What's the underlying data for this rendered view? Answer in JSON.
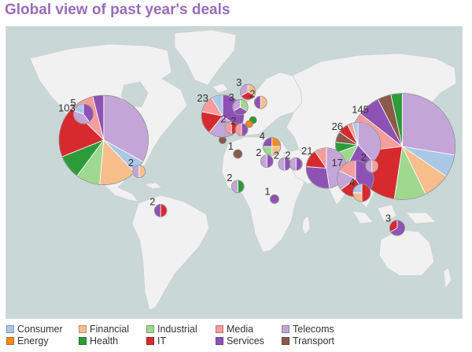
{
  "title": "Global view of past year's deals",
  "colors": {
    "ocean": "#c9d7d6",
    "land": "#f1f1f1",
    "border": "#cfcfcf"
  },
  "categories": [
    {
      "name": "Consumer",
      "color": "#aac8e6"
    },
    {
      "name": "Energy",
      "color": "#f08c23"
    },
    {
      "name": "Financial",
      "color": "#f7be8c"
    },
    {
      "name": "Health",
      "color": "#2e9b3a"
    },
    {
      "name": "Industrial",
      "color": "#9ed98f"
    },
    {
      "name": "IT",
      "color": "#d62a2f"
    },
    {
      "name": "Media",
      "color": "#f59c9c"
    },
    {
      "name": "Services",
      "color": "#8e52b5"
    },
    {
      "name": "Telecoms",
      "color": "#c4a5d8"
    },
    {
      "name": "Transport",
      "color": "#8c5a4a"
    }
  ],
  "chart_data": {
    "type": "map-pie",
    "bubbles": [
      {
        "label": "103",
        "count": 103,
        "lat": 40,
        "lon": -98,
        "segments": {
          "Telecoms": 34,
          "Consumer": 5,
          "Financial": 14,
          "Industrial": 9,
          "Health": 9,
          "IT": 19,
          "Media": 9,
          "Services": 4
        }
      },
      {
        "label": "5",
        "count": 5,
        "lat": 54,
        "lon": -114,
        "segments": {
          "Services": 2,
          "Telecoms": 2,
          "Consumer": 1
        }
      },
      {
        "label": "2",
        "count": 2,
        "lat": 18.5,
        "lon": -70,
        "segments": {
          "Financial": 1,
          "Telecoms": 1
        }
      },
      {
        "label": "2",
        "count": 2,
        "lat": -12,
        "lon": -53,
        "segments": {
          "IT": 1,
          "Services": 1
        }
      },
      {
        "label": "23",
        "count": 23,
        "lat": 53,
        "lon": -4,
        "segments": {
          "Services": 8,
          "Telecoms": 6,
          "IT": 4,
          "Media": 3,
          "Consumer": 2
        }
      },
      {
        "label": "3",
        "count": 3,
        "lat": 57,
        "lon": 10,
        "segments": {
          "Industrial": 1,
          "Services": 1,
          "Telecoms": 1
        }
      },
      {
        "label": "2",
        "count": 2,
        "lat": 47,
        "lon": 3,
        "segments": {
          "IT": 1,
          "Media": 1
        }
      },
      {
        "label": "2",
        "count": 2,
        "lat": 46,
        "lon": 11,
        "segments": {
          "Services": 1,
          "Media": 1
        }
      },
      {
        "label": "3",
        "count": 3,
        "lat": 63,
        "lon": 16,
        "segments": {
          "Financial": 1,
          "IT": 1,
          "Telecoms": 1
        }
      },
      {
        "label": "2",
        "count": 2,
        "lat": 59,
        "lon": 26,
        "segments": {
          "Financial": 1,
          "Services": 1
        }
      },
      {
        "label": "1",
        "count": 1,
        "lat": 31,
        "lon": 8,
        "segments": {
          "Transport": 1
        }
      },
      {
        "label": "4",
        "count": 4,
        "lat": 36,
        "lon": 35,
        "segments": {
          "Energy": 1,
          "Financial": 1,
          "Industrial": 1,
          "Services": 1
        }
      },
      {
        "label": "2",
        "count": 2,
        "lat": 26,
        "lon": 31,
        "segments": {
          "Services": 1,
          "Telecoms": 1
        }
      },
      {
        "label": "2",
        "count": 2,
        "lat": 24,
        "lon": 45,
        "segments": {
          "Services": 1,
          "Telecoms": 1
        }
      },
      {
        "label": "2",
        "count": 2,
        "lat": 24,
        "lon": 54,
        "segments": {
          "Services": 1,
          "Telecoms": 1
        }
      },
      {
        "label": "2",
        "count": 2,
        "lat": 7,
        "lon": 8,
        "segments": {
          "Health": 1,
          "Telecoms": 1
        }
      },
      {
        "label": "1",
        "count": 1,
        "lat": -3,
        "lon": 37,
        "segments": {
          "Services": 1
        }
      },
      {
        "label": "21",
        "count": 21,
        "lat": 21,
        "lon": 78,
        "segments": {
          "Telecoms": 10,
          "Services": 6,
          "IT": 3,
          "Media": 2
        }
      },
      {
        "label": "26",
        "count": 26,
        "lat": 37,
        "lon": 103,
        "segments": {
          "Telecoms": 10,
          "Services": 5,
          "Industrial": 3,
          "Health": 2,
          "Transport": 2,
          "IT": 2,
          "Media": 1,
          "Consumer": 1
        }
      },
      {
        "label": "2",
        "count": 2,
        "lat": 22.5,
        "lon": 114,
        "segments": {
          "Media": 1,
          "Telecoms": 1
        }
      },
      {
        "label": "145",
        "count": 145,
        "lat": 36,
        "lon": 138,
        "segments": {
          "Telecoms": 40,
          "Consumer": 10,
          "Financial": 12,
          "Industrial": 14,
          "IT": 30,
          "Media": 18,
          "Services": 10,
          "Transport": 6,
          "Health": 5
        }
      },
      {
        "label": "17",
        "count": 17,
        "lat": 13,
        "lon": 101,
        "segments": {
          "Services": 7,
          "IT": 4,
          "Telecoms": 3,
          "Media": 3
        }
      },
      {
        "label": "4",
        "count": 4,
        "lat": 2,
        "lon": 106,
        "segments": {
          "IT": 2,
          "Financial": 1,
          "Consumer": 1
        }
      },
      {
        "label": "3",
        "count": 3,
        "lat": -25,
        "lon": 134,
        "segments": {
          "Services": 2,
          "IT": 1
        }
      }
    ],
    "extra_markers": [
      {
        "lat": 13,
        "lon": 122,
        "category": "Consumer"
      },
      {
        "lat": 51,
        "lon": 20,
        "category": "Health"
      },
      {
        "lat": 49,
        "lon": 17,
        "category": "Energy"
      },
      {
        "lat": 40,
        "lon": -4,
        "category": "Transport"
      },
      {
        "lat": 24,
        "lon": 90,
        "category": "Media"
      }
    ]
  },
  "legend": [
    {
      "label": "Consumer",
      "color": "#aac8e6"
    },
    {
      "label": "Energy",
      "color": "#f08c23"
    },
    {
      "label": "Financial",
      "color": "#f7be8c"
    },
    {
      "label": "Health",
      "color": "#2e9b3a"
    },
    {
      "label": "Industrial",
      "color": "#9ed98f"
    },
    {
      "label": "IT",
      "color": "#d62a2f"
    },
    {
      "label": "Media",
      "color": "#f59c9c"
    },
    {
      "label": "Services",
      "color": "#8e52b5"
    },
    {
      "label": "Telecoms",
      "color": "#c4a5d8"
    },
    {
      "label": "Transport",
      "color": "#8c5a4a"
    }
  ]
}
